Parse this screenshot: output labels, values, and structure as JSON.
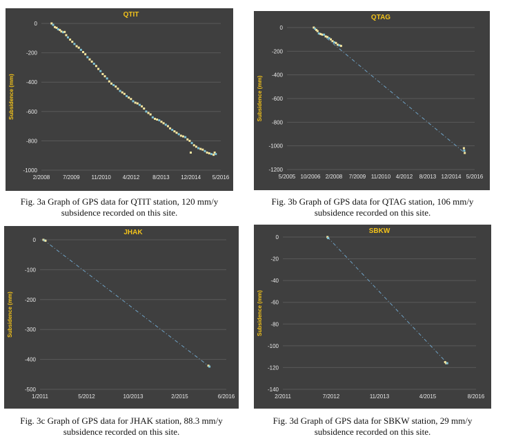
{
  "style": {
    "panel_bg": "#3f3f3f",
    "grid": "#5a5a5a",
    "tick_text": "#e8e8e8",
    "title_color": "#f2c21b",
    "ylabel_color": "#f2c21b",
    "point_color": "#f5e6a0",
    "point_alt_color": "#7fc3d6",
    "trend_color": "#6fa3c7"
  },
  "chart_data": [
    {
      "type": "scatter",
      "title": "QTIT",
      "ylabel": "Subsidence (mm)",
      "xlabel": "",
      "ylim": [
        -1000,
        0
      ],
      "yticks": [
        0,
        -200,
        -400,
        -600,
        -800,
        -1000
      ],
      "xticks": [
        "2/2008",
        "7/2009",
        "11/2010",
        "4/2012",
        "8/2013",
        "12/2014",
        "5/2016"
      ],
      "x_range_years": [
        2008.08,
        2016.33
      ],
      "grid": true,
      "trend": false,
      "series": [
        {
          "x": [
            2008.55,
            2008.62,
            2008.7,
            2008.78,
            2008.85,
            2008.93,
            2009.0,
            2009.08,
            2009.15,
            2009.22,
            2009.3,
            2009.4,
            2009.5,
            2009.6,
            2009.7,
            2009.8,
            2009.9,
            2010.0,
            2010.1,
            2010.2,
            2010.3,
            2010.4,
            2010.5,
            2010.6,
            2010.7,
            2010.8,
            2010.9,
            2011.0,
            2011.1,
            2011.2,
            2011.3,
            2011.4,
            2011.5,
            2011.6,
            2011.7,
            2011.8,
            2011.9,
            2012.0,
            2012.1,
            2012.2,
            2012.3,
            2012.4,
            2012.5,
            2012.6,
            2012.7,
            2012.8,
            2012.9,
            2013.0,
            2013.1,
            2013.2,
            2013.3,
            2013.4,
            2013.5,
            2013.6,
            2013.7,
            2013.8,
            2013.9,
            2014.0,
            2014.1,
            2014.2,
            2014.3,
            2014.4,
            2014.5,
            2014.6,
            2014.7,
            2014.8,
            2014.9,
            2015.0,
            2015.1,
            2015.2,
            2015.3,
            2015.4,
            2015.5,
            2015.6,
            2015.7,
            2015.8,
            2015.9,
            2016.0,
            2016.05,
            2016.1,
            2014.95
          ],
          "y": [
            0,
            -10,
            -25,
            -30,
            -40,
            -45,
            -55,
            -60,
            -58,
            -80,
            -95,
            -110,
            -125,
            -140,
            -155,
            -165,
            -180,
            -195,
            -210,
            -230,
            -245,
            -260,
            -275,
            -290,
            -310,
            -325,
            -345,
            -360,
            -375,
            -395,
            -410,
            -420,
            -430,
            -445,
            -460,
            -470,
            -480,
            -495,
            -505,
            -515,
            -530,
            -540,
            -545,
            -555,
            -565,
            -580,
            -600,
            -610,
            -620,
            -640,
            -650,
            -655,
            -660,
            -670,
            -680,
            -690,
            -700,
            -715,
            -725,
            -735,
            -745,
            -755,
            -765,
            -770,
            -775,
            -790,
            -800,
            -815,
            -830,
            -840,
            -850,
            -855,
            -860,
            -870,
            -880,
            -885,
            -890,
            -895,
            -880,
            -890,
            -880
          ]
        }
      ]
    },
    {
      "type": "scatter",
      "title": "QTAG",
      "ylabel": "Subsidence (mm)",
      "xlabel": "",
      "ylim": [
        -1200,
        0
      ],
      "yticks": [
        0,
        -200,
        -400,
        -600,
        -800,
        -1000,
        -1200
      ],
      "xticks": [
        "5/2005",
        "10/2006",
        "2/2008",
        "7/2009",
        "11/2010",
        "4/2012",
        "8/2013",
        "12/2014",
        "5/2016"
      ],
      "x_range_years": [
        2005.33,
        2016.33
      ],
      "grid": true,
      "trend": true,
      "series": [
        {
          "x": [
            2006.9,
            2006.97,
            2007.05,
            2007.12,
            2007.2,
            2007.3,
            2007.4,
            2007.5,
            2007.6,
            2007.7,
            2007.8,
            2007.9,
            2008.0,
            2008.1,
            2008.2,
            2008.3,
            2008.4,
            2008.5,
            2015.7,
            2015.72,
            2015.75
          ],
          "y": [
            0,
            -10,
            -20,
            -30,
            -50,
            -55,
            -60,
            -60,
            -75,
            -80,
            -90,
            -100,
            -115,
            -125,
            -130,
            -145,
            -150,
            -155,
            -1020,
            -1040,
            -1060
          ]
        }
      ]
    },
    {
      "type": "scatter",
      "title": "JHAK",
      "ylabel": "Subsidence (mm)",
      "xlabel": "",
      "ylim": [
        -500,
        0
      ],
      "yticks": [
        0,
        -100,
        -200,
        -300,
        -400,
        -500
      ],
      "xticks": [
        "1/2011",
        "5/2012",
        "10/2013",
        "2/2015",
        "6/2016"
      ],
      "x_range_years": [
        2011.0,
        2016.42
      ],
      "grid": true,
      "trend": true,
      "series": [
        {
          "x": [
            2011.1,
            2011.13,
            2011.16,
            2015.9,
            2015.93
          ],
          "y": [
            0,
            -2,
            -3,
            -421,
            -424
          ]
        }
      ]
    },
    {
      "type": "scatter",
      "title": "SBKW",
      "ylabel": "Subsidence (mm)",
      "xlabel": "",
      "ylim": [
        -140,
        0
      ],
      "yticks": [
        0,
        -20,
        -40,
        -60,
        -80,
        -100,
        -120,
        -140
      ],
      "xticks": [
        "2/2011",
        "7/2012",
        "11/2013",
        "4/2015",
        "8/2016"
      ],
      "x_range_years": [
        2011.08,
        2016.58
      ],
      "grid": true,
      "trend": true,
      "series": [
        {
          "x": [
            2012.35,
            2012.37,
            2015.7,
            2015.73,
            2015.76
          ],
          "y": [
            0,
            -1,
            -115,
            -116,
            -116
          ]
        }
      ]
    }
  ],
  "captions": [
    "Fig. 3a Graph of GPS data for QTIT station, 120 mm/y subsidence recorded on this site.",
    "Fig. 3b Graph of GPS data for QTAG station, 106 mm/y subsidence recorded on this site.",
    "Fig. 3c Graph of GPS data for JHAK station, 88.3 mm/y subsidence recorded on this site.",
    "Fig. 3d Graph of GPS data for SBKW station, 29 mm/y subsidence recorded on this site."
  ]
}
